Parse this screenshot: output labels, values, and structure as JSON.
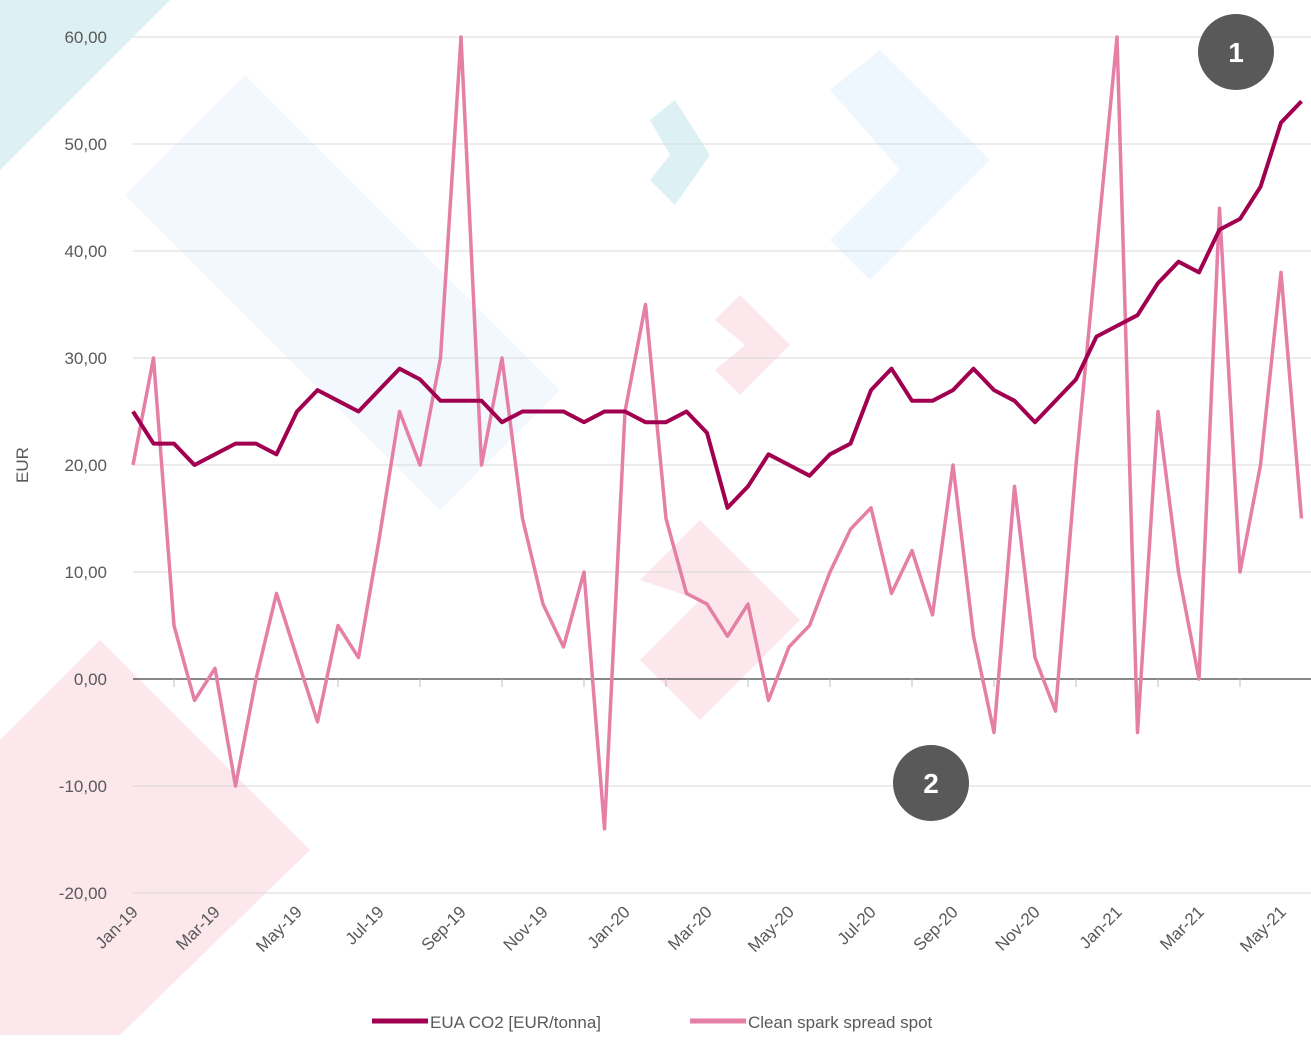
{
  "chart_data": {
    "type": "line",
    "y_label": "EUR",
    "categories": [
      "Jan-19",
      null,
      null,
      null,
      "Mar-19",
      null,
      null,
      null,
      "May-19",
      null,
      null,
      null,
      "Jul-19",
      null,
      null,
      null,
      "Sep-19",
      null,
      null,
      null,
      "Nov-19",
      null,
      null,
      null,
      "Jan-20",
      null,
      null,
      null,
      "Mar-20",
      null,
      null,
      null,
      "May-20",
      null,
      null,
      null,
      "Jul-20",
      null,
      null,
      null,
      "Sep-20",
      null,
      null,
      null,
      "Nov-20",
      null,
      null,
      null,
      "Jan-21",
      null,
      null,
      null,
      "Mar-21",
      null,
      null,
      null,
      "May-21",
      null
    ],
    "series": [
      {
        "name": "EUA CO2 [EUR/tonna]",
        "color": "#a0004f",
        "values": [
          25,
          22,
          22,
          20,
          21,
          22,
          22,
          21,
          25,
          27,
          26,
          25,
          27,
          29,
          28,
          26,
          26,
          26,
          24,
          25,
          25,
          25,
          24,
          25,
          25,
          24,
          24,
          25,
          23,
          16,
          18,
          21,
          20,
          19,
          21,
          22,
          27,
          29,
          26,
          26,
          27,
          29,
          27,
          26,
          24,
          26,
          28,
          32,
          33,
          34,
          37,
          39,
          38,
          42,
          43,
          46,
          52,
          54
        ]
      },
      {
        "name": "Clean spark spread spot",
        "color": "#e57fa6",
        "values": [
          20,
          30,
          5,
          -2,
          1,
          -10,
          0,
          8,
          2,
          -4,
          5,
          2,
          13,
          25,
          20,
          30,
          60,
          20,
          30,
          15,
          7,
          3,
          10,
          -14,
          25,
          35,
          15,
          8,
          7,
          4,
          7,
          -2,
          3,
          5,
          10,
          14,
          16,
          8,
          12,
          6,
          20,
          4,
          -5,
          18,
          2,
          -3,
          20,
          40,
          60,
          -5,
          25,
          10,
          0,
          44,
          10,
          20,
          38,
          15
        ]
      }
    ],
    "ylim": [
      -20,
      60
    ],
    "yticks": [
      {
        "value": -20,
        "label": "-20,00"
      },
      {
        "value": -10,
        "label": "-10,00"
      },
      {
        "value": 0,
        "label": "0,00"
      },
      {
        "value": 10,
        "label": "10,00"
      },
      {
        "value": 20,
        "label": "20,00"
      },
      {
        "value": 30,
        "label": "30,00"
      },
      {
        "value": 40,
        "label": "40,00"
      },
      {
        "value": 50,
        "label": "50,00"
      },
      {
        "value": 60,
        "label": "60,00"
      }
    ],
    "grid": true,
    "annotations": [
      "1",
      "2"
    ],
    "legend": "bottom"
  }
}
